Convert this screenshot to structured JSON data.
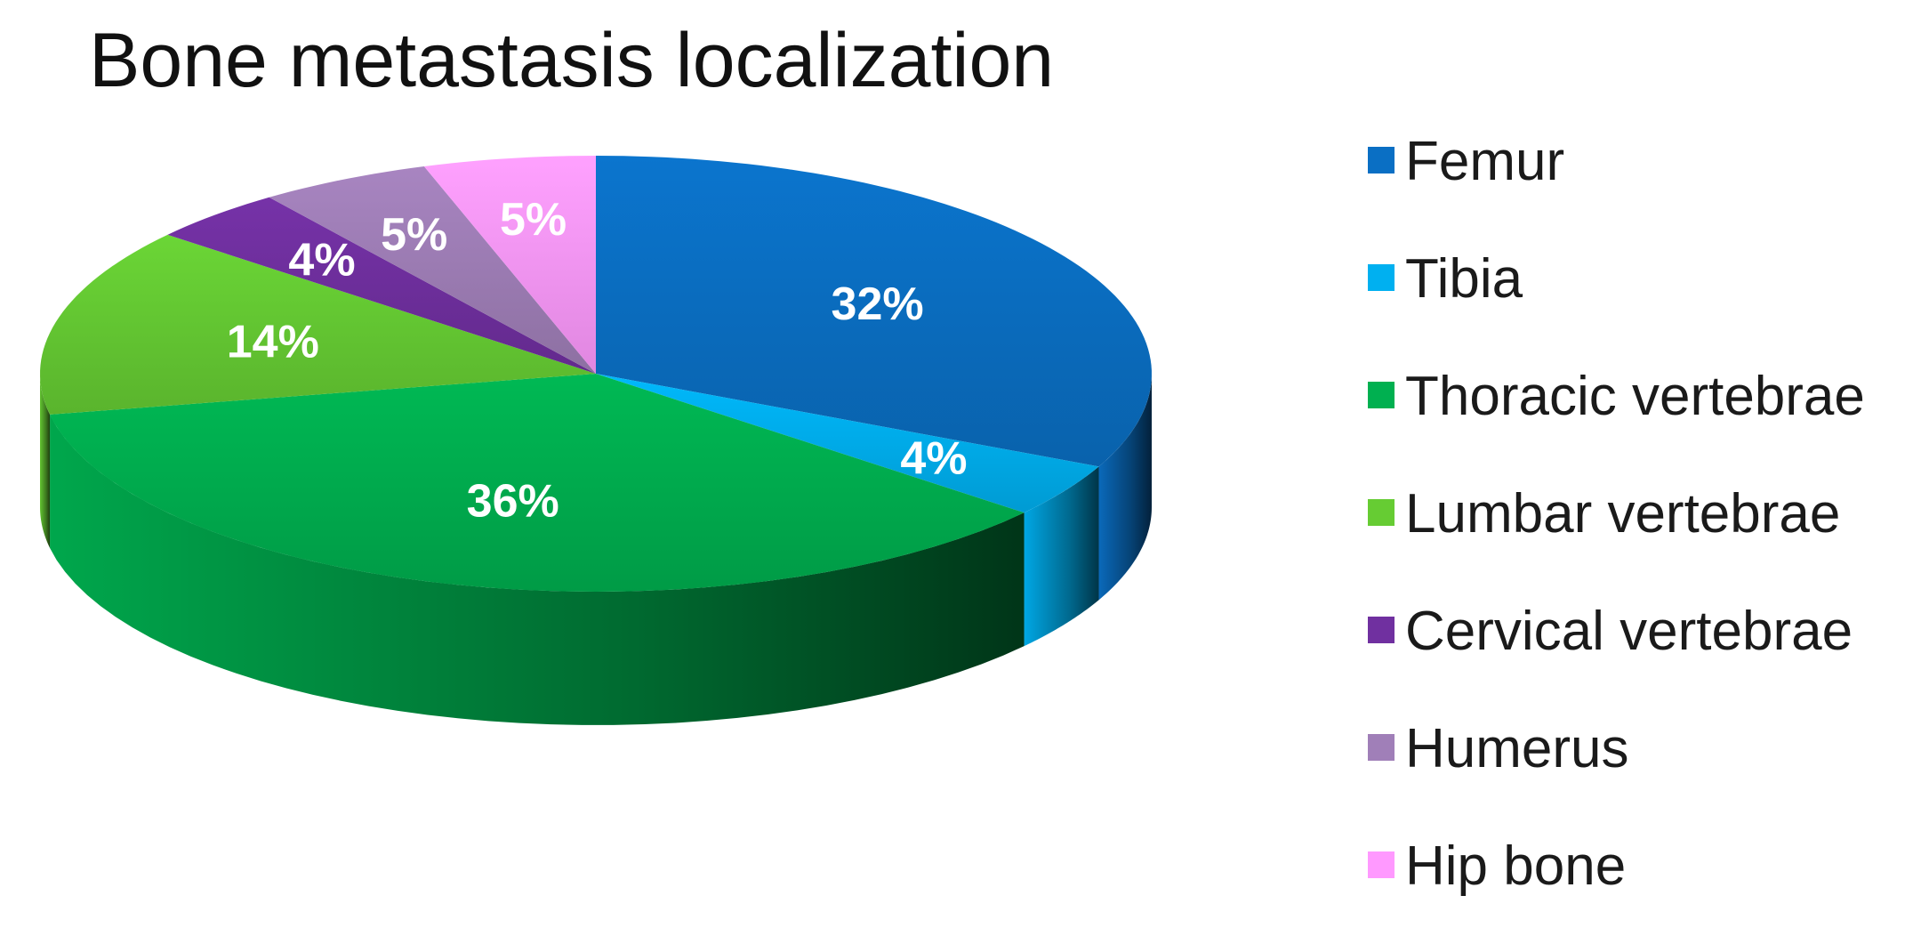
{
  "chart_data": {
    "type": "pie",
    "style": "3d",
    "title": "Bone metastasis localization",
    "legend_position": "right",
    "slices": [
      {
        "name": "Femur",
        "value": 32,
        "label": "32%",
        "color": "#0A6FC4"
      },
      {
        "name": "Tibia",
        "value": 4,
        "label": "4%",
        "color": "#00B0F0"
      },
      {
        "name": "Thoracic vertebrae",
        "value": 36,
        "label": "36%",
        "color": "#00B050"
      },
      {
        "name": "Lumbar vertebrae",
        "value": 14,
        "label": "14%",
        "color": "#66CC33"
      },
      {
        "name": "Cervical vertebrae",
        "value": 4,
        "label": "4%",
        "color": "#7030A0"
      },
      {
        "name": "Humerus",
        "value": 5,
        "label": "5%",
        "color": "#A07FB8"
      },
      {
        "name": "Hip bone",
        "value": 5,
        "label": "5%",
        "color": "#FF99FF"
      }
    ]
  }
}
